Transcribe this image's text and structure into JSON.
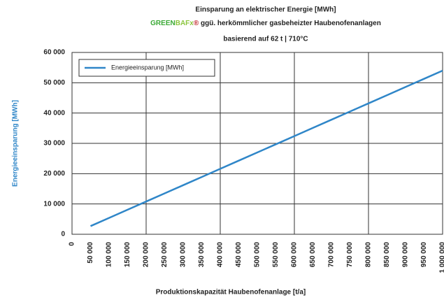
{
  "chart_data": {
    "type": "line",
    "title": "Einsparung an elektrischer Energie [MWh]",
    "subtitle_brand": [
      "GREEN",
      "BAFx",
      "®"
    ],
    "subtitle_text": "ggü. herkömmlicher gasbeheizter Haubenofenanlagen",
    "subtitle_basis": "basierend auf 62 t | 710°C",
    "x_label": "Produktionskapazität Haubenofenanlage [t/a]",
    "y_label": "Energieeinsparung [MWh]",
    "x": [
      50000,
      100000,
      150000,
      200000,
      250000,
      300000,
      350000,
      400000,
      450000,
      500000,
      550000,
      600000,
      650000,
      700000,
      750000,
      800000,
      850000,
      900000,
      950000,
      1000000
    ],
    "series": [
      {
        "name": "Energieeinsparung [MWh]",
        "color": "#2f86c8",
        "values": [
          2700,
          5400,
          8100,
          10800,
          13500,
          16200,
          18900,
          21600,
          24300,
          27000,
          29700,
          32400,
          35100,
          37800,
          40500,
          43200,
          45900,
          48600,
          51300,
          54000
        ]
      }
    ],
    "xlim": [
      0,
      1000000
    ],
    "xticks": [
      0,
      {
        "value": 50000,
        "label": "50 000"
      },
      {
        "value": 100000,
        "label": "100 000"
      },
      {
        "value": 150000,
        "label": "150 000"
      },
      {
        "value": 200000,
        "label": "200 000"
      },
      {
        "value": 250000,
        "label": "250 000"
      },
      {
        "value": 300000,
        "label": "300 000"
      },
      {
        "value": 350000,
        "label": "350 000"
      },
      {
        "value": 400000,
        "label": "400 000"
      },
      {
        "value": 450000,
        "label": "450 000"
      },
      {
        "value": 500000,
        "label": "500 000"
      },
      {
        "value": 550000,
        "label": "550 000"
      },
      {
        "value": 600000,
        "label": "600 000"
      },
      {
        "value": 650000,
        "label": "650 000"
      },
      {
        "value": 700000,
        "label": "700 000"
      },
      {
        "value": 750000,
        "label": "750 000"
      },
      {
        "value": 800000,
        "label": "800 000"
      },
      {
        "value": 850000,
        "label": "850 000"
      },
      {
        "value": 900000,
        "label": "900 000"
      },
      {
        "value": 950000,
        "label": "950 000"
      },
      {
        "value": 1000000,
        "label": "1 000 000"
      }
    ],
    "ylim": [
      0,
      60000
    ],
    "yticks": [
      0,
      {
        "value": 10000,
        "label": "10 000"
      },
      {
        "value": 20000,
        "label": "20 000"
      },
      {
        "value": 30000,
        "label": "30 000"
      },
      {
        "value": 40000,
        "label": "40 000"
      },
      {
        "value": 50000,
        "label": "50 000"
      },
      {
        "value": 60000,
        "label": "60 000"
      }
    ],
    "grid": true,
    "legend": "upper left"
  }
}
